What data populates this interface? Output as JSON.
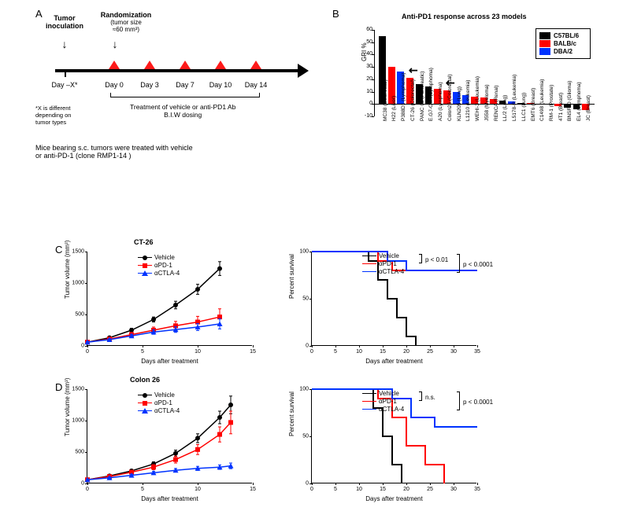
{
  "panels": {
    "a": "A",
    "b": "B",
    "c": "C",
    "d": "D"
  },
  "panelA": {
    "tumor_inoculation": "Tumor\ninoculation",
    "randomization": "Randomization",
    "rand_note": "(tumor size\n≈60 mm³)",
    "days": [
      "Day –X*",
      "Day 0",
      "Day 3",
      "Day 7",
      "Day 10",
      "Day 14"
    ],
    "treatment_label": "Treatment of vehicle or anti-PD1 Ab\nB.I.W dosing",
    "asterisk_note": "*X is different\ndepending on\ntumor types",
    "footnote": "Mice bearing s.c. tumors were treated with vehicle\nor anti-PD-1 (clone RMP1-14 )"
  },
  "panelB": {
    "title": "Anti-PD1 response across 23 models",
    "ylabel": "GRI %",
    "ylim": [
      -10,
      60
    ],
    "yticks": [
      -10,
      0,
      10,
      20,
      30,
      40,
      50,
      60
    ],
    "legend": [
      {
        "label": "C57BL/6",
        "color": "#000000"
      },
      {
        "label": "BALB/c",
        "color": "#ff0000"
      },
      {
        "label": "DBA/2",
        "color": "#0033ff"
      }
    ],
    "bars": [
      {
        "label": "MC38 (Colorectal)",
        "value": 55,
        "color": "#000000"
      },
      {
        "label": "H22 (Liver)",
        "value": 30,
        "color": "#ff0000"
      },
      {
        "label": "P388D1 (Lymphoma)",
        "value": 26,
        "color": "#0033ff"
      },
      {
        "label": "CT-26 (Colorectal)",
        "value": 21,
        "color": "#ff0000",
        "arrow": true
      },
      {
        "label": "PANC 02 (Pancreatic)",
        "value": 16,
        "color": "#000000"
      },
      {
        "label": "E.G7-OVA (Lymphoma)",
        "value": 14,
        "color": "#000000"
      },
      {
        "label": "A20 (Lymphoma)",
        "value": 12,
        "color": "#ff0000"
      },
      {
        "label": "Colon26 (Colorectal)",
        "value": 11,
        "color": "#ff0000",
        "arrow": true
      },
      {
        "label": "KLN205 (Lung)",
        "value": 10,
        "color": "#0033ff"
      },
      {
        "label": "L1210 (Leukemia)",
        "value": 7,
        "color": "#0033ff"
      },
      {
        "label": "WEHI-3 (Leukemia)",
        "value": 6,
        "color": "#ff0000"
      },
      {
        "label": "J558 (Myeloma)",
        "value": 5,
        "color": "#ff0000"
      },
      {
        "label": "RENCA (Renal)",
        "value": 4,
        "color": "#ff0000"
      },
      {
        "label": "LL/2 (Lung)",
        "value": 3,
        "color": "#000000"
      },
      {
        "label": "L5178-R (Leukemia)",
        "value": 2,
        "color": "#0033ff"
      },
      {
        "label": "LLC1 (Lung)",
        "value": 1,
        "color": "#000000"
      },
      {
        "label": "EMT6 (Breast)",
        "value": 1,
        "color": "#ff0000"
      },
      {
        "label": "C1498 (Leukemia)",
        "value": 0,
        "color": "#000000"
      },
      {
        "label": "RM-1 (Prostate)",
        "value": 0,
        "color": "#000000"
      },
      {
        "label": "4T1 (Breast)",
        "value": -2,
        "color": "#ff0000"
      },
      {
        "label": "BNSF10 (Glioma)",
        "value": -3,
        "color": "#000000"
      },
      {
        "label": "EL4 (Lymphoma)",
        "value": -4,
        "color": "#000000"
      },
      {
        "label": "JC (Breast)",
        "value": -5,
        "color": "#ff0000"
      }
    ]
  },
  "colors": {
    "vehicle": "#000000",
    "pd1": "#ff0000",
    "ctla4": "#0033ff"
  },
  "legendLabels": {
    "vehicle": "Vehicle",
    "pd1": "αPD-1",
    "ctla4": "αCTLA-4"
  },
  "panelC": {
    "title": "CT-26",
    "growth": {
      "xlabel": "Days after treatment",
      "ylabel": "Tumor volume (mm³)",
      "xlim": [
        0,
        15
      ],
      "ylim": [
        0,
        1500
      ],
      "xticks": [
        0,
        5,
        10,
        15
      ],
      "yticks": [
        0,
        500,
        1000,
        1500
      ],
      "series": {
        "vehicle": {
          "x": [
            0,
            2,
            4,
            6,
            8,
            10,
            12
          ],
          "y": [
            60,
            130,
            250,
            420,
            650,
            900,
            1230
          ],
          "err": [
            10,
            20,
            30,
            40,
            60,
            80,
            110
          ]
        },
        "pd1": {
          "x": [
            0,
            2,
            4,
            6,
            8,
            10,
            12
          ],
          "y": [
            60,
            110,
            180,
            250,
            320,
            380,
            460
          ],
          "err": [
            10,
            20,
            35,
            50,
            70,
            90,
            130
          ]
        },
        "ctla4": {
          "x": [
            0,
            2,
            4,
            6,
            8,
            10,
            12
          ],
          "y": [
            60,
            100,
            160,
            220,
            260,
            300,
            350
          ],
          "err": [
            10,
            15,
            25,
            35,
            45,
            55,
            80
          ]
        }
      }
    },
    "survival": {
      "xlabel": "Days after treatment",
      "ylabel": "Percent survival",
      "xlim": [
        0,
        35
      ],
      "ylim": [
        0,
        100
      ],
      "xticks": [
        0,
        5,
        10,
        15,
        20,
        25,
        30,
        35
      ],
      "yticks": [
        0,
        50,
        100
      ],
      "series": {
        "vehicle": [
          [
            0,
            100
          ],
          [
            12,
            100
          ],
          [
            12,
            90
          ],
          [
            14,
            90
          ],
          [
            14,
            70
          ],
          [
            16,
            70
          ],
          [
            16,
            50
          ],
          [
            18,
            50
          ],
          [
            18,
            30
          ],
          [
            20,
            30
          ],
          [
            20,
            10
          ],
          [
            22,
            10
          ],
          [
            22,
            0
          ]
        ],
        "pd1": [
          [
            0,
            100
          ],
          [
            14,
            100
          ],
          [
            14,
            90
          ],
          [
            17,
            90
          ],
          [
            17,
            80
          ],
          [
            35,
            80
          ]
        ],
        "ctla4": [
          [
            0,
            100
          ],
          [
            16,
            100
          ],
          [
            16,
            90
          ],
          [
            20,
            90
          ],
          [
            20,
            80
          ],
          [
            35,
            80
          ]
        ]
      },
      "pvals": {
        "pd1": "p < 0.01",
        "combined": "p < 0.0001"
      }
    }
  },
  "panelD": {
    "title": "Colon 26",
    "growth": {
      "xlabel": "Days after treatment",
      "ylabel": "Tumor volume (mm³)",
      "xlim": [
        0,
        15
      ],
      "ylim": [
        0,
        1500
      ],
      "xticks": [
        0,
        5,
        10,
        15
      ],
      "yticks": [
        0,
        500,
        1000,
        1500
      ],
      "series": {
        "vehicle": {
          "x": [
            0,
            2,
            4,
            6,
            8,
            10,
            12,
            13
          ],
          "y": [
            60,
            120,
            200,
            310,
            480,
            720,
            1050,
            1250
          ],
          "err": [
            10,
            15,
            25,
            35,
            50,
            70,
            100,
            140
          ]
        },
        "pd1": {
          "x": [
            0,
            2,
            4,
            6,
            8,
            10,
            12,
            13
          ],
          "y": [
            60,
            110,
            180,
            260,
            380,
            540,
            780,
            970
          ],
          "err": [
            10,
            15,
            25,
            40,
            55,
            80,
            120,
            180
          ]
        },
        "ctla4": {
          "x": [
            0,
            2,
            4,
            6,
            8,
            10,
            12,
            13
          ],
          "y": [
            60,
            90,
            130,
            170,
            210,
            240,
            260,
            280
          ],
          "err": [
            10,
            12,
            18,
            22,
            28,
            32,
            36,
            45
          ]
        }
      }
    },
    "survival": {
      "xlabel": "Days after treatment",
      "ylabel": "Percent survival",
      "xlim": [
        0,
        35
      ],
      "ylim": [
        0,
        100
      ],
      "xticks": [
        0,
        5,
        10,
        15,
        20,
        25,
        30,
        35
      ],
      "yticks": [
        0,
        50,
        100
      ],
      "series": {
        "vehicle": [
          [
            0,
            100
          ],
          [
            13,
            100
          ],
          [
            13,
            80
          ],
          [
            15,
            80
          ],
          [
            15,
            50
          ],
          [
            17,
            50
          ],
          [
            17,
            20
          ],
          [
            19,
            20
          ],
          [
            19,
            0
          ]
        ],
        "pd1": [
          [
            0,
            100
          ],
          [
            14,
            100
          ],
          [
            14,
            90
          ],
          [
            17,
            90
          ],
          [
            17,
            70
          ],
          [
            20,
            70
          ],
          [
            20,
            40
          ],
          [
            24,
            40
          ],
          [
            24,
            20
          ],
          [
            28,
            20
          ],
          [
            28,
            0
          ]
        ],
        "ctla4": [
          [
            0,
            100
          ],
          [
            17,
            100
          ],
          [
            17,
            90
          ],
          [
            21,
            90
          ],
          [
            21,
            70
          ],
          [
            26,
            70
          ],
          [
            26,
            60
          ],
          [
            35,
            60
          ]
        ]
      },
      "pvals": {
        "pd1": "n.s.",
        "combined": "p < 0.0001"
      }
    }
  }
}
